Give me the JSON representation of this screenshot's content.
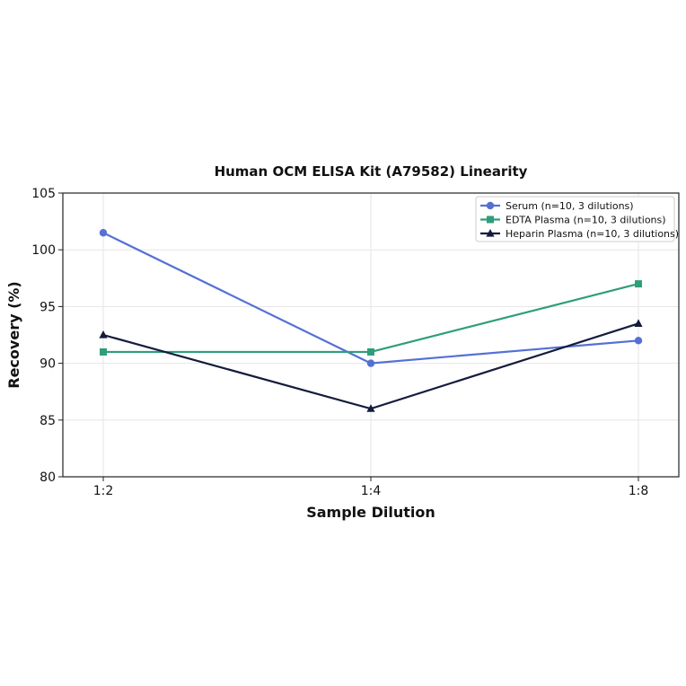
{
  "chart_data": {
    "type": "line",
    "title": "Human OCM ELISA Kit (A79582) Linearity",
    "xlabel": "Sample Dilution",
    "ylabel": "Recovery (%)",
    "categories": [
      "1:2",
      "1:4",
      "1:8"
    ],
    "ylim": [
      80,
      105
    ],
    "yticks": [
      80,
      85,
      90,
      95,
      100,
      105
    ],
    "grid": true,
    "legend_position": "top-right",
    "series": [
      {
        "name": "Serum (n=10, 3 dilutions)",
        "values": [
          101.5,
          90.0,
          92.0
        ],
        "color": "#5470d6",
        "marker": "circle"
      },
      {
        "name": "EDTA Plasma (n=10, 3 dilutions)",
        "values": [
          91.0,
          91.0,
          97.0
        ],
        "color": "#2e9e7a",
        "marker": "square"
      },
      {
        "name": "Heparin Plasma (n=10, 3 dilutions)",
        "values": [
          92.5,
          86.0,
          93.5
        ],
        "color": "#141c3d",
        "marker": "triangle"
      }
    ]
  }
}
